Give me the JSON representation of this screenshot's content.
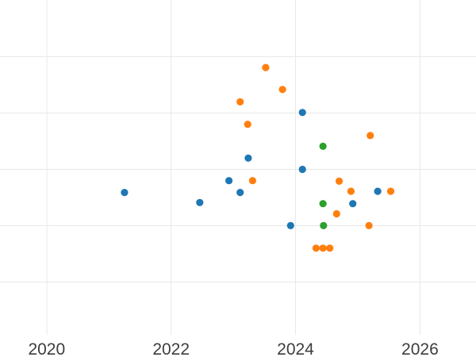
{
  "figure": {
    "background_color": "#ffffff",
    "grid_color": "#e8e8e8",
    "tick_label_color": "#3d3d3d",
    "series_colors": {
      "blue": "#1f77b4",
      "orange": "#ff7f0e",
      "green": "#2ca02c"
    }
  },
  "chart_data": {
    "type": "scatter",
    "title": "",
    "xlabel": "",
    "ylabel": "",
    "grid": true,
    "legend": "none",
    "marker_radius": 4.6,
    "x_axis": {
      "domain": [
        2019.25,
        2026.9
      ],
      "tick_values": [
        2020,
        2022,
        2024,
        2026
      ],
      "tick_labels": [
        "2020",
        "2022",
        "2024",
        "2026"
      ]
    },
    "y_axis": {
      "domain": [
        -0.94,
        5.01
      ],
      "gridline_values": [
        0,
        1,
        2,
        3,
        4
      ],
      "tick_labels": [],
      "labels_visible": false,
      "unit": "gridline-index"
    },
    "series": [
      {
        "name": "blue",
        "color": "#1f77b4",
        "points": [
          [
            2021.25,
            1.59
          ],
          [
            2022.46,
            1.41
          ],
          [
            2022.93,
            1.8
          ],
          [
            2023.11,
            1.59
          ],
          [
            2023.24,
            2.2
          ],
          [
            2023.92,
            1.0
          ],
          [
            2024.11,
            3.01
          ],
          [
            2024.11,
            2.0
          ],
          [
            2024.92,
            1.39
          ],
          [
            2025.32,
            1.61
          ]
        ]
      },
      {
        "name": "orange",
        "color": "#ff7f0e",
        "points": [
          [
            2023.11,
            3.2
          ],
          [
            2023.23,
            2.8
          ],
          [
            2023.31,
            1.8
          ],
          [
            2023.52,
            3.81
          ],
          [
            2023.79,
            3.42
          ],
          [
            2024.33,
            0.6
          ],
          [
            2024.44,
            0.6
          ],
          [
            2024.55,
            0.6
          ],
          [
            2024.66,
            1.21
          ],
          [
            2024.7,
            1.79
          ],
          [
            2024.89,
            1.61
          ],
          [
            2025.18,
            1.0
          ],
          [
            2025.2,
            2.6
          ],
          [
            2025.53,
            1.61
          ]
        ]
      },
      {
        "name": "green",
        "color": "#2ca02c",
        "points": [
          [
            2024.44,
            2.41
          ],
          [
            2024.44,
            1.39
          ],
          [
            2024.45,
            1.0
          ]
        ]
      }
    ]
  }
}
